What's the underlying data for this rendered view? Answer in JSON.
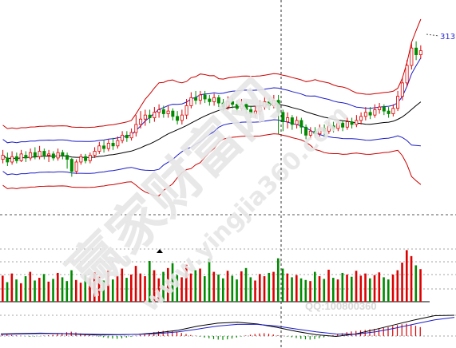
{
  "chart_data": {
    "type": "candlestick-with-volume-and-macd",
    "price_label": "313",
    "watermark_text": "赢家财富网",
    "watermark_url": "www.yingjia360.com",
    "qq_text": "QQ:100800360",
    "colors": {
      "up": "#dd0000",
      "down": "#008a00",
      "ma": "#000000",
      "inner_band": "#1c1cc8",
      "outer_band": "#cc0000",
      "macd_dif": "#000000",
      "macd_dea": "#1c1cc8",
      "grid": "#555555"
    },
    "candles": [
      [
        0.05,
        0.08,
        0.12,
        0.02
      ],
      [
        0.06,
        0.03,
        0.1,
        0.0
      ],
      [
        0.03,
        0.07,
        0.11,
        0.01
      ],
      [
        0.07,
        0.04,
        0.1,
        0.02
      ],
      [
        0.04,
        0.09,
        0.12,
        0.03
      ],
      [
        0.08,
        0.06,
        0.11,
        0.03
      ],
      [
        0.06,
        0.1,
        0.13,
        0.04
      ],
      [
        0.1,
        0.07,
        0.14,
        0.05
      ],
      [
        0.07,
        0.11,
        0.15,
        0.05
      ],
      [
        0.11,
        0.08,
        0.13,
        0.05
      ],
      [
        0.08,
        0.09,
        0.12,
        0.03
      ],
      [
        0.09,
        0.06,
        0.11,
        0.04
      ],
      [
        0.06,
        0.1,
        0.13,
        0.04
      ],
      [
        0.1,
        0.08,
        0.12,
        0.05
      ],
      [
        0.08,
        0.05,
        0.1,
        -0.02
      ],
      [
        0.05,
        -0.04,
        0.06,
        -0.08
      ],
      [
        -0.04,
        0.03,
        0.05,
        -0.06
      ],
      [
        0.03,
        0.07,
        0.09,
        0.01
      ],
      [
        0.07,
        0.04,
        0.09,
        0.02
      ],
      [
        0.04,
        0.08,
        0.1,
        0.02
      ],
      [
        0.08,
        0.11,
        0.14,
        0.06
      ],
      [
        0.11,
        0.15,
        0.18,
        0.09
      ],
      [
        0.15,
        0.13,
        0.19,
        0.1
      ],
      [
        0.13,
        0.17,
        0.2,
        0.11
      ],
      [
        0.17,
        0.15,
        0.21,
        0.12
      ],
      [
        0.15,
        0.19,
        0.22,
        0.13
      ],
      [
        0.19,
        0.23,
        0.26,
        0.17
      ],
      [
        0.23,
        0.21,
        0.26,
        0.18
      ],
      [
        0.21,
        0.25,
        0.28,
        0.19
      ],
      [
        0.25,
        0.31,
        0.38,
        0.22
      ],
      [
        0.31,
        0.35,
        0.41,
        0.28
      ],
      [
        0.35,
        0.38,
        0.42,
        0.3
      ],
      [
        0.38,
        0.36,
        0.42,
        0.32
      ],
      [
        0.36,
        0.4,
        0.44,
        0.33
      ],
      [
        0.4,
        0.42,
        0.46,
        0.36
      ],
      [
        0.42,
        0.39,
        0.45,
        0.36
      ],
      [
        0.39,
        0.41,
        0.45,
        0.36
      ],
      [
        0.41,
        0.37,
        0.43,
        0.34
      ],
      [
        0.37,
        0.34,
        0.41,
        0.31
      ],
      [
        0.34,
        0.38,
        0.42,
        0.31
      ],
      [
        0.38,
        0.45,
        0.5,
        0.35
      ],
      [
        0.45,
        0.51,
        0.55,
        0.43
      ],
      [
        0.51,
        0.49,
        0.56,
        0.46
      ],
      [
        0.49,
        0.53,
        0.56,
        0.46
      ],
      [
        0.53,
        0.5,
        0.56,
        0.47
      ],
      [
        0.5,
        0.48,
        0.53,
        0.45
      ],
      [
        0.48,
        0.51,
        0.54,
        0.45
      ],
      [
        0.51,
        0.47,
        0.53,
        0.44
      ],
      [
        0.47,
        0.44,
        0.5,
        0.41
      ],
      [
        0.44,
        0.48,
        0.52,
        0.42
      ],
      [
        0.48,
        0.46,
        0.51,
        0.43
      ],
      [
        0.46,
        0.43,
        0.49,
        0.4
      ],
      [
        0.43,
        0.46,
        0.5,
        0.41
      ],
      [
        0.46,
        0.42,
        0.48,
        0.39
      ],
      [
        0.42,
        0.39,
        0.45,
        0.36
      ],
      [
        0.39,
        0.41,
        0.45,
        0.36
      ],
      [
        0.41,
        0.44,
        0.49,
        0.38
      ],
      [
        0.44,
        0.48,
        0.52,
        0.42
      ],
      [
        0.48,
        0.45,
        0.51,
        0.42
      ],
      [
        0.45,
        0.49,
        0.53,
        0.43
      ],
      [
        0.49,
        0.4,
        0.53,
        0.24
      ],
      [
        0.4,
        0.33,
        0.42,
        0.26
      ],
      [
        0.33,
        0.36,
        0.4,
        0.28
      ],
      [
        0.36,
        0.31,
        0.38,
        0.27
      ],
      [
        0.31,
        0.34,
        0.37,
        0.28
      ],
      [
        0.34,
        0.29,
        0.36,
        0.24
      ],
      [
        0.29,
        0.23,
        0.31,
        0.2
      ],
      [
        0.23,
        0.26,
        0.29,
        0.2
      ],
      [
        0.26,
        0.24,
        0.29,
        0.21
      ],
      [
        0.24,
        0.28,
        0.31,
        0.22
      ],
      [
        0.28,
        0.26,
        0.31,
        0.23
      ],
      [
        0.26,
        0.3,
        0.33,
        0.24
      ],
      [
        0.3,
        0.28,
        0.33,
        0.25
      ],
      [
        0.28,
        0.32,
        0.35,
        0.26
      ],
      [
        0.32,
        0.29,
        0.34,
        0.26
      ],
      [
        0.29,
        0.33,
        0.36,
        0.27
      ],
      [
        0.33,
        0.31,
        0.36,
        0.28
      ],
      [
        0.31,
        0.34,
        0.38,
        0.29
      ],
      [
        0.34,
        0.37,
        0.4,
        0.31
      ],
      [
        0.37,
        0.4,
        0.44,
        0.34
      ],
      [
        0.4,
        0.38,
        0.44,
        0.35
      ],
      [
        0.38,
        0.42,
        0.46,
        0.36
      ],
      [
        0.42,
        0.44,
        0.47,
        0.39
      ],
      [
        0.44,
        0.41,
        0.46,
        0.38
      ],
      [
        0.41,
        0.39,
        0.44,
        0.36
      ],
      [
        0.39,
        0.43,
        0.46,
        0.37
      ],
      [
        0.43,
        0.52,
        0.56,
        0.41
      ],
      [
        0.52,
        0.62,
        0.66,
        0.49
      ],
      [
        0.62,
        0.75,
        0.79,
        0.59
      ],
      [
        0.75,
        0.88,
        0.92,
        0.72
      ],
      [
        0.88,
        0.83,
        0.93,
        0.79
      ],
      [
        0.83,
        0.86,
        0.9,
        0.8
      ]
    ],
    "volumes": [
      0.48,
      0.36,
      0.52,
      0.41,
      0.34,
      0.47,
      0.55,
      0.39,
      0.44,
      0.51,
      0.37,
      0.42,
      0.53,
      0.45,
      0.38,
      0.58,
      0.4,
      0.35,
      0.49,
      0.43,
      0.54,
      0.46,
      0.39,
      0.57,
      0.41,
      0.48,
      0.61,
      0.44,
      0.5,
      0.66,
      0.52,
      0.47,
      0.75,
      0.58,
      0.43,
      0.55,
      0.62,
      0.71,
      0.49,
      0.45,
      0.68,
      0.52,
      0.58,
      0.61,
      0.47,
      0.79,
      0.55,
      0.5,
      0.43,
      0.57,
      0.48,
      0.41,
      0.56,
      0.62,
      0.45,
      0.39,
      0.51,
      0.47,
      0.53,
      0.55,
      0.8,
      0.61,
      0.52,
      0.45,
      0.49,
      0.43,
      0.4,
      0.38,
      0.55,
      0.47,
      0.42,
      0.59,
      0.44,
      0.41,
      0.53,
      0.5,
      0.46,
      0.57,
      0.48,
      0.52,
      0.43,
      0.49,
      0.54,
      0.45,
      0.41,
      0.5,
      0.58,
      0.72,
      0.95,
      0.84,
      0.67,
      0.6
    ],
    "macd": {
      "dif": [
        0.1,
        0.12,
        0.14,
        0.12,
        0.08,
        0.05,
        0.06,
        0.09,
        0.16,
        0.28,
        0.48,
        0.62,
        0.66,
        0.58,
        0.42,
        0.22,
        0.06,
        -0.02,
        0.1,
        0.32,
        0.55,
        0.78,
        0.98,
        1.0
      ],
      "dea": [
        0.08,
        0.1,
        0.12,
        0.12,
        0.1,
        0.08,
        0.07,
        0.08,
        0.12,
        0.2,
        0.34,
        0.48,
        0.56,
        0.56,
        0.48,
        0.34,
        0.2,
        0.1,
        0.09,
        0.2,
        0.38,
        0.58,
        0.78,
        0.9
      ],
      "hist": [
        0.1,
        0.12,
        0.08,
        0.05,
        0.03,
        -0.02,
        -0.05,
        -0.04,
        -0.02,
        0.03,
        0.06,
        0.1,
        0.16,
        0.24,
        0.3,
        0.34,
        0.28,
        0.2,
        0.12,
        0.06,
        0.02,
        -0.04,
        -0.1,
        -0.16,
        -0.2,
        -0.22,
        -0.18,
        -0.12,
        -0.06,
        0.02,
        0.08,
        0.14,
        0.22,
        0.3,
        0.36,
        0.4,
        0.42,
        0.38,
        0.32,
        0.24,
        0.16,
        0.08,
        0.02,
        -0.05,
        -0.12,
        -0.18,
        -0.24,
        -0.28,
        -0.3,
        -0.26,
        -0.2,
        -0.12,
        -0.04,
        0.04,
        0.1,
        0.16,
        0.2,
        0.22,
        0.18,
        0.12,
        0.06,
        0.02,
        -0.04,
        -0.1,
        -0.16,
        -0.22,
        -0.26,
        -0.28,
        -0.24,
        -0.18,
        -0.1,
        -0.02,
        0.06,
        0.14,
        0.22,
        0.3,
        0.36,
        0.4,
        0.44,
        0.48,
        0.52,
        0.56,
        0.6,
        0.64,
        0.7,
        0.78,
        0.86,
        0.92,
        0.96,
        0.9,
        0.8,
        0.7
      ]
    }
  }
}
